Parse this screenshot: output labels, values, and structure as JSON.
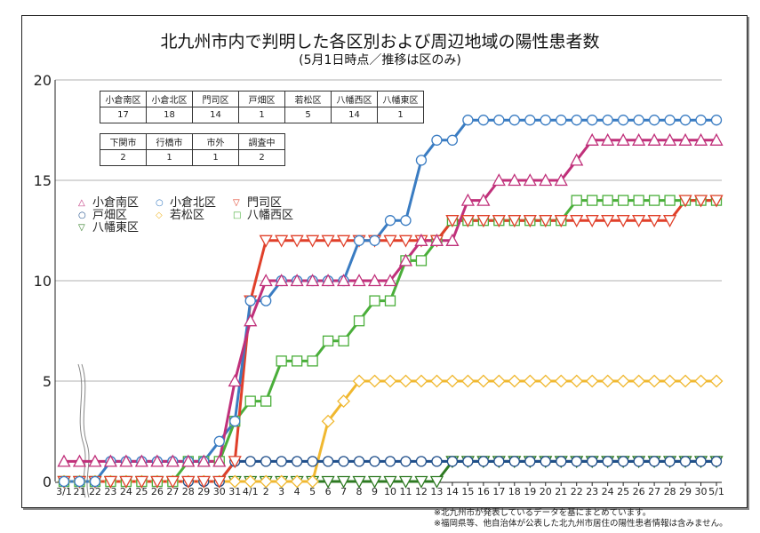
{
  "title": "北九州市内で判明した各区別および周辺地域の陽性患者数",
  "subtitle": "(5月1日時点／推移は区のみ)",
  "table_wards": {
    "headers": [
      "小倉南区",
      "小倉北区",
      "門司区",
      "戸畑区",
      "若松区",
      "八幡西区",
      "八幡東区"
    ],
    "values": [
      "17",
      "18",
      "14",
      "1",
      "5",
      "14",
      "1"
    ]
  },
  "table_nearby": {
    "headers": [
      "下関市",
      "行橋市",
      "市外",
      "調査中"
    ],
    "values": [
      "2",
      "1",
      "1",
      "2"
    ]
  },
  "footnotes": [
    "※北九州市が発表しているデータを基にまとめています。",
    "※福岡県等、他自治体が公表した北九州市居住の陽性患者情報は含みません。"
  ],
  "chart_data": {
    "type": "line",
    "title": "北九州市内で判明した各区別および周辺地域の陽性患者数",
    "subtitle": "(5月1日時点／推移は区のみ)",
    "xlabel": "",
    "ylabel": "",
    "ylim": [
      0,
      20
    ],
    "yticks": [
      0,
      5,
      10,
      15,
      20
    ],
    "grid": true,
    "legend_position": "upper-left",
    "axis_break_after": "3/1",
    "categories": [
      "3/1",
      "21",
      "22",
      "23",
      "24",
      "25",
      "26",
      "27",
      "28",
      "29",
      "30",
      "31",
      "4/1",
      "2",
      "3",
      "4",
      "5",
      "6",
      "7",
      "8",
      "9",
      "10",
      "11",
      "12",
      "13",
      "14",
      "15",
      "16",
      "17",
      "18",
      "19",
      "20",
      "21",
      "22",
      "23",
      "24",
      "25",
      "26",
      "27",
      "28",
      "29",
      "30",
      "5/1"
    ],
    "series": [
      {
        "name": "小倉南区",
        "color": "#c0307a",
        "marker": "triangle-up",
        "values": [
          1,
          1,
          1,
          1,
          1,
          1,
          1,
          1,
          1,
          1,
          1,
          5,
          8,
          10,
          10,
          10,
          10,
          10,
          10,
          10,
          10,
          10,
          11,
          12,
          12,
          12,
          14,
          14,
          15,
          15,
          15,
          15,
          15,
          16,
          17,
          17,
          17,
          17,
          17,
          17,
          17,
          17,
          17
        ]
      },
      {
        "name": "小倉北区",
        "color": "#3a7cc2",
        "marker": "circle",
        "values": [
          0,
          0,
          0,
          1,
          1,
          1,
          1,
          1,
          1,
          1,
          2,
          3,
          9,
          9,
          10,
          10,
          10,
          10,
          10,
          12,
          12,
          13,
          13,
          16,
          17,
          17,
          18,
          18,
          18,
          18,
          18,
          18,
          18,
          18,
          18,
          18,
          18,
          18,
          18,
          18,
          18,
          18,
          18
        ]
      },
      {
        "name": "門司区",
        "color": "#e0402a",
        "marker": "triangle-down",
        "values": [
          0,
          0,
          0,
          0,
          0,
          0,
          0,
          0,
          0,
          0,
          0,
          1,
          9,
          12,
          12,
          12,
          12,
          12,
          12,
          12,
          12,
          12,
          12,
          12,
          12,
          13,
          13,
          13,
          13,
          13,
          13,
          13,
          13,
          13,
          13,
          13,
          13,
          13,
          13,
          13,
          14,
          14,
          14
        ]
      },
      {
        "name": "戸畑区",
        "color": "#1f4e8a",
        "marker": "circle",
        "values": [
          0,
          0,
          0,
          0,
          0,
          0,
          0,
          0,
          0,
          0,
          0,
          1,
          1,
          1,
          1,
          1,
          1,
          1,
          1,
          1,
          1,
          1,
          1,
          1,
          1,
          1,
          1,
          1,
          1,
          1,
          1,
          1,
          1,
          1,
          1,
          1,
          1,
          1,
          1,
          1,
          1,
          1,
          1
        ]
      },
      {
        "name": "若松区",
        "color": "#f0b830",
        "marker": "diamond",
        "values": [
          0,
          0,
          0,
          0,
          0,
          0,
          0,
          0,
          0,
          0,
          0,
          0,
          0,
          0,
          0,
          0,
          0,
          3,
          4,
          5,
          5,
          5,
          5,
          5,
          5,
          5,
          5,
          5,
          5,
          5,
          5,
          5,
          5,
          5,
          5,
          5,
          5,
          5,
          5,
          5,
          5,
          5,
          5
        ]
      },
      {
        "name": "八幡西区",
        "color": "#4aae3a",
        "marker": "square",
        "values": [
          0,
          0,
          0,
          0,
          0,
          0,
          0,
          0,
          1,
          1,
          1,
          3,
          4,
          4,
          6,
          6,
          6,
          7,
          7,
          8,
          9,
          9,
          11,
          11,
          12,
          13,
          13,
          13,
          13,
          13,
          13,
          13,
          13,
          14,
          14,
          14,
          14,
          14,
          14,
          14,
          14,
          14,
          14
        ]
      },
      {
        "name": "八幡東区",
        "color": "#2e7a22",
        "marker": "triangle-down",
        "values": [
          0,
          0,
          0,
          0,
          0,
          0,
          0,
          0,
          0,
          0,
          0,
          0,
          0,
          0,
          0,
          0,
          0,
          0,
          0,
          0,
          0,
          0,
          0,
          0,
          0,
          1,
          1,
          1,
          1,
          1,
          1,
          1,
          1,
          1,
          1,
          1,
          1,
          1,
          1,
          1,
          1,
          1,
          1
        ]
      }
    ]
  },
  "legend": [
    {
      "label": "小倉南区",
      "color": "#c0307a",
      "glyph": "△"
    },
    {
      "label": "小倉北区",
      "color": "#3a7cc2",
      "glyph": "○"
    },
    {
      "label": "門司区",
      "color": "#e0402a",
      "glyph": "▽"
    },
    {
      "label": "戸畑区",
      "color": "#1f4e8a",
      "glyph": "○"
    },
    {
      "label": "若松区",
      "color": "#f0b830",
      "glyph": "◇"
    },
    {
      "label": "八幡西区",
      "color": "#4aae3a",
      "glyph": "□"
    },
    {
      "label": "八幡東区",
      "color": "#2e7a22",
      "glyph": "▽"
    }
  ]
}
